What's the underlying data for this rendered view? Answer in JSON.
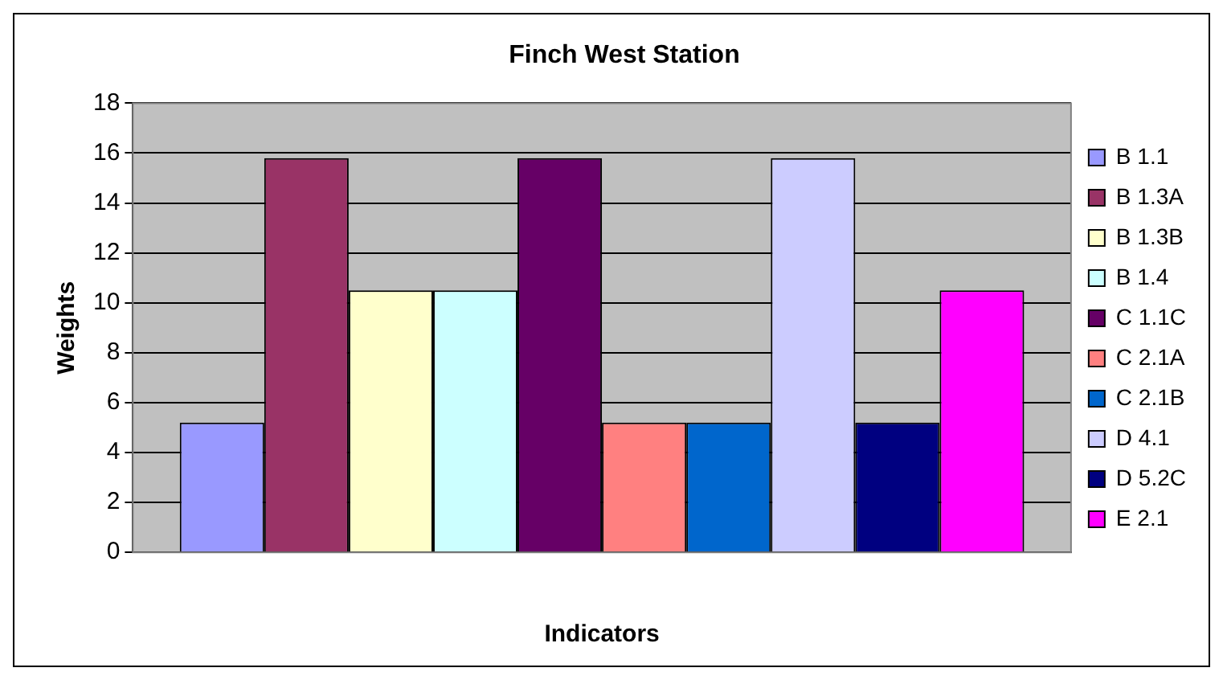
{
  "chart_data": {
    "type": "bar",
    "title": "Finch West Station",
    "xlabel": "Indicators",
    "ylabel": "Weights",
    "categories": [
      null
    ],
    "series": [
      {
        "name": "B 1.1",
        "color": "#9999ff",
        "values": [
          5.2
        ]
      },
      {
        "name": "B 1.3A",
        "color": "#993366",
        "values": [
          15.8
        ]
      },
      {
        "name": "B 1.3B",
        "color": "#ffffcc",
        "values": [
          10.5
        ]
      },
      {
        "name": "B 1.4",
        "color": "#ccffff",
        "values": [
          10.5
        ]
      },
      {
        "name": "C 1.1C",
        "color": "#660066",
        "values": [
          15.8
        ]
      },
      {
        "name": "C 2.1A",
        "color": "#ff8080",
        "values": [
          5.2
        ]
      },
      {
        "name": "C 2.1B",
        "color": "#0066cc",
        "values": [
          5.2
        ]
      },
      {
        "name": "D 4.1",
        "color": "#ccccff",
        "values": [
          15.8
        ]
      },
      {
        "name": "D 5.2C",
        "color": "#000080",
        "values": [
          5.2
        ]
      },
      {
        "name": "E 2.1",
        "color": "#ff00ff",
        "values": [
          10.5
        ]
      }
    ],
    "ylim": [
      0,
      18
    ],
    "yticks": [
      0,
      2,
      4,
      6,
      8,
      10,
      12,
      14,
      16,
      18
    ],
    "grid": "y",
    "legend": "right"
  }
}
